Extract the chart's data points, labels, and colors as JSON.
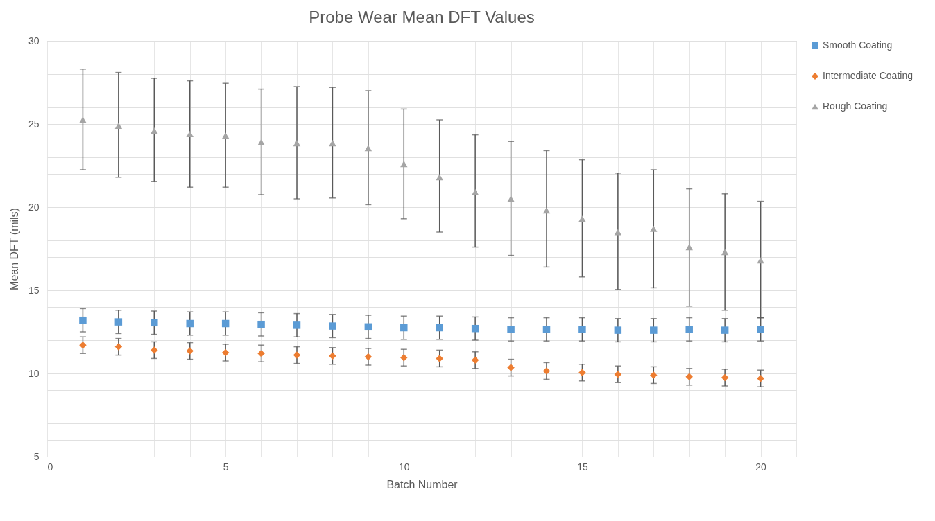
{
  "chart_data": {
    "type": "scatter",
    "title": "Probe Wear Mean DFT Values",
    "xlabel": "Batch Number",
    "ylabel": "Mean DFT (mils)",
    "x": [
      1,
      2,
      3,
      4,
      5,
      6,
      7,
      8,
      9,
      10,
      11,
      12,
      13,
      14,
      15,
      16,
      17,
      18,
      19,
      20
    ],
    "series": [
      {
        "name": "Smooth Coating",
        "color": "#5b9bd5",
        "marker": "square",
        "values": [
          13.2,
          13.1,
          13.05,
          13.0,
          13.0,
          12.95,
          12.9,
          12.85,
          12.8,
          12.75,
          12.75,
          12.7,
          12.65,
          12.65,
          12.65,
          12.6,
          12.6,
          12.65,
          12.6,
          12.65
        ],
        "errors": [
          0.7,
          0.7,
          0.7,
          0.7,
          0.7,
          0.7,
          0.7,
          0.7,
          0.7,
          0.7,
          0.7,
          0.7,
          0.7,
          0.7,
          0.7,
          0.7,
          0.7,
          0.7,
          0.7,
          0.7
        ]
      },
      {
        "name": "Intermediate Coating",
        "color": "#ed7d31",
        "marker": "diamond",
        "values": [
          11.7,
          11.6,
          11.4,
          11.35,
          11.25,
          11.2,
          11.1,
          11.05,
          11.0,
          10.95,
          10.9,
          10.8,
          10.35,
          10.15,
          10.05,
          9.95,
          9.9,
          9.8,
          9.75,
          9.7
        ],
        "errors": [
          0.5,
          0.5,
          0.5,
          0.5,
          0.5,
          0.5,
          0.5,
          0.5,
          0.5,
          0.5,
          0.5,
          0.5,
          0.5,
          0.5,
          0.5,
          0.5,
          0.5,
          0.5,
          0.5,
          0.5
        ]
      },
      {
        "name": "Rough Coating",
        "color": "#a5a5a5",
        "marker": "triangle",
        "values": [
          25.25,
          24.9,
          24.6,
          24.4,
          24.3,
          23.9,
          23.85,
          23.85,
          23.55,
          22.6,
          21.8,
          20.9,
          20.5,
          19.8,
          19.3,
          18.5,
          18.7,
          17.6,
          17.3,
          16.8
        ],
        "errors": [
          [
            22.25,
            28.3
          ],
          [
            21.8,
            28.1
          ],
          [
            21.55,
            27.75
          ],
          [
            21.2,
            27.6
          ],
          [
            21.2,
            27.45
          ],
          [
            20.75,
            27.1
          ],
          [
            20.5,
            27.25
          ],
          [
            20.55,
            27.2
          ],
          [
            20.15,
            27.0
          ],
          [
            19.3,
            25.9
          ],
          [
            18.5,
            25.25
          ],
          [
            17.6,
            24.35
          ],
          [
            17.1,
            23.95
          ],
          [
            16.4,
            23.4
          ],
          [
            15.8,
            22.85
          ],
          [
            15.05,
            22.05
          ],
          [
            15.15,
            22.25
          ],
          [
            14.05,
            21.1
          ],
          [
            13.8,
            20.8
          ],
          [
            13.35,
            20.35
          ]
        ]
      }
    ],
    "xlim": [
      0,
      21
    ],
    "xticks": [
      0,
      {
        "value": 1,
        "label": null
      },
      {
        "value": 2,
        "label": null
      },
      {
        "value": 3,
        "label": null
      },
      {
        "value": 4,
        "label": null
      },
      5,
      {
        "value": 6,
        "label": null
      },
      {
        "value": 7,
        "label": null
      },
      {
        "value": 8,
        "label": null
      },
      {
        "value": 9,
        "label": null
      },
      10,
      {
        "value": 11,
        "label": null
      },
      {
        "value": 12,
        "label": null
      },
      {
        "value": 13,
        "label": null
      },
      {
        "value": 14,
        "label": null
      },
      15,
      {
        "value": 16,
        "label": null
      },
      {
        "value": 17,
        "label": null
      },
      {
        "value": 18,
        "label": null
      },
      {
        "value": 19,
        "label": null
      },
      20,
      {
        "value": 21,
        "label": null
      }
    ],
    "ylim": [
      5,
      30
    ],
    "yticks": [
      5,
      {
        "value": 6,
        "label": null
      },
      {
        "value": 7,
        "label": null
      },
      {
        "value": 8,
        "label": null
      },
      {
        "value": 9,
        "label": null
      },
      10,
      {
        "value": 11,
        "label": null
      },
      {
        "value": 12,
        "label": null
      },
      {
        "value": 13,
        "label": null
      },
      {
        "value": 14,
        "label": null
      },
      15,
      {
        "value": 16,
        "label": null
      },
      {
        "value": 17,
        "label": null
      },
      {
        "value": 18,
        "label": null
      },
      {
        "value": 19,
        "label": null
      },
      20,
      {
        "value": 21,
        "label": null
      },
      {
        "value": 22,
        "label": null
      },
      {
        "value": 23,
        "label": null
      },
      {
        "value": 24,
        "label": null
      },
      25,
      {
        "value": 26,
        "label": null
      },
      {
        "value": 27,
        "label": null
      },
      {
        "value": 28,
        "label": null
      },
      {
        "value": 29,
        "label": null
      },
      30
    ],
    "grid": true,
    "legend": "right"
  }
}
